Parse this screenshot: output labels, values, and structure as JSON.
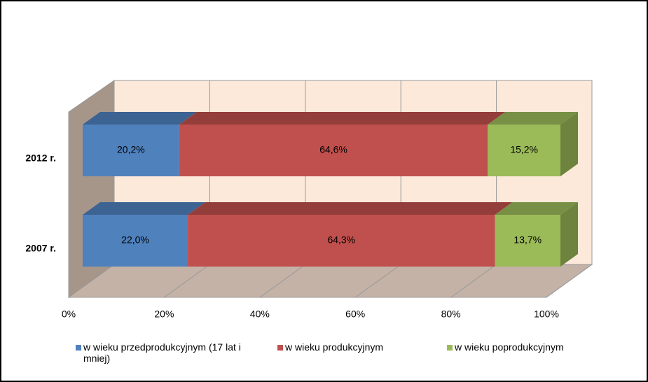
{
  "chart_data": {
    "type": "bar3d_stacked_horizontal",
    "categories": [
      "2012 r.",
      "2007 r."
    ],
    "series": [
      {
        "name": "w wieku przedprodukcyjnym (17 lat i mniej)",
        "color": "#4f81bd",
        "values": [
          20.2,
          22.0
        ],
        "value_labels": [
          "20,2%",
          "22,0%"
        ]
      },
      {
        "name": "w wieku produkcyjnym",
        "color": "#c0504d",
        "values": [
          64.6,
          64.3
        ],
        "value_labels": [
          "64,6%",
          "64,3%"
        ]
      },
      {
        "name": "w wieku poprodukcyjnym",
        "color": "#9bbb59",
        "values": [
          15.2,
          13.7
        ],
        "value_labels": [
          "15,2%",
          "13,7%"
        ]
      }
    ],
    "xlim": [
      0,
      100
    ],
    "xticks": [
      {
        "value": 0,
        "label": "0%"
      },
      {
        "value": 20,
        "label": "20%"
      },
      {
        "value": 40,
        "label": "40%"
      },
      {
        "value": 60,
        "label": "60%"
      },
      {
        "value": 80,
        "label": "80%"
      },
      {
        "value": 100,
        "label": "100%"
      }
    ],
    "grid": true,
    "legend": "bottom"
  }
}
